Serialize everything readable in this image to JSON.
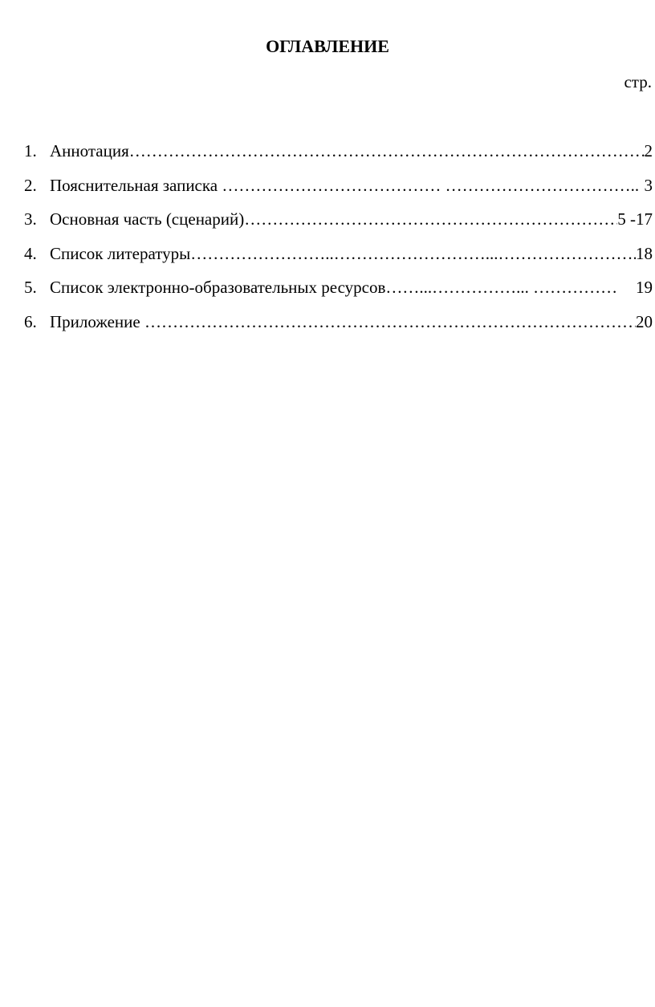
{
  "document": {
    "title": "ОГЛАВЛЕНИЕ",
    "page_column_label": "стр.",
    "toc": [
      {
        "number": "1.",
        "label": "Аннотация",
        "leader": "……………………………………………………………………………………………….",
        "page": "2"
      },
      {
        "number": "2.",
        "label": "Пояснительная записка ",
        "leader": "………………………………… ……………………………..",
        "page": "3"
      },
      {
        "number": "3.",
        "label": "Основная часть (сценарий)",
        "leader": "…………………………………………………………………... ",
        "page": "5 -17"
      },
      {
        "number": "4.",
        "label": "Список литературы",
        "leader": "……………………..………………………...……………………... ",
        "page": "18"
      },
      {
        "number": "5.",
        "label": "Список электронно-образовательных ресурсов",
        "leader": "……...……………...   …………………………",
        "page": "19"
      },
      {
        "number": "6.",
        "label": "Приложение ",
        "leader": "……………………………………………………………………………………",
        "page": "20"
      }
    ]
  }
}
